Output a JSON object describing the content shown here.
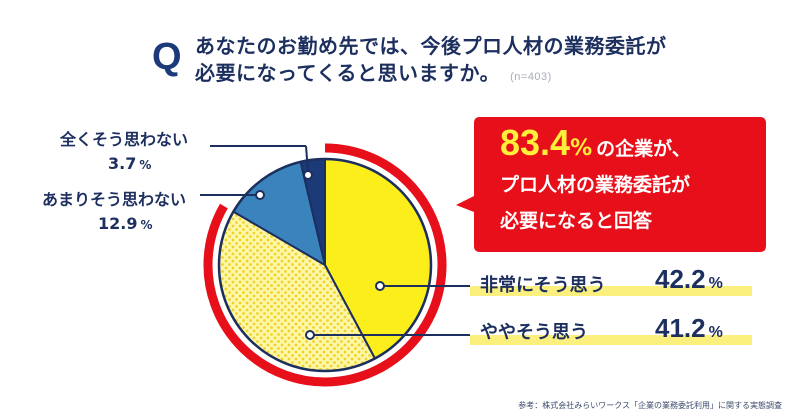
{
  "question": {
    "q_letter": "Q",
    "line1": "あなたのお勤め先では、今後プロ人材の業務委託が",
    "line2": "必要になってくると思いますか。",
    "sample": "(n=403)"
  },
  "callout": {
    "value": "83.4",
    "unit": "%",
    "after_value": "の企業が、",
    "line2": "プロ人材の業務委託が",
    "line3": "必要になると回答"
  },
  "footnote": "参考：株式会社みらいワークス「企業の業務委託利用」に関する実態調査",
  "colors": {
    "navy": "#1c2f5e",
    "red": "#e60f1a",
    "yellow": "#fbee1a",
    "pale_yellow": "#fdf7a8",
    "blue": "#3a83bd",
    "dark_blue": "#1d3a78"
  },
  "chart_data": {
    "type": "pie",
    "n": "n=403",
    "slices": [
      {
        "label": "非常にそう思う",
        "value": 42.2,
        "pct_text": "42.2",
        "unit": "%",
        "color": "#fbee1a"
      },
      {
        "label": "ややそう思う",
        "value": 41.2,
        "pct_text": "41.2",
        "unit": "%",
        "color": "#fdf7a8"
      },
      {
        "label": "あまりそう思わない",
        "value": 12.9,
        "pct_text": "12.9",
        "unit": "%",
        "color": "#3a83bd"
      },
      {
        "label": "全くそう思わない",
        "value": 3.7,
        "pct_text": "3.7",
        "unit": "%",
        "color": "#1d3a78"
      }
    ],
    "highlight_total": 83.4
  }
}
